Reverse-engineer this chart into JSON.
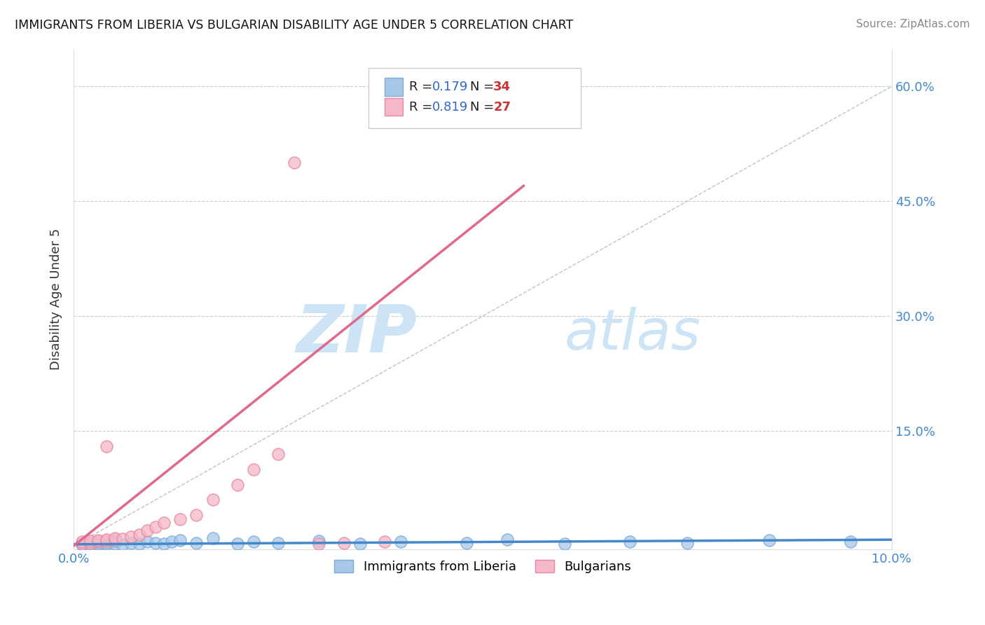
{
  "title": "IMMIGRANTS FROM LIBERIA VS BULGARIAN DISABILITY AGE UNDER 5 CORRELATION CHART",
  "source": "Source: ZipAtlas.com",
  "ylabel": "Disability Age Under 5",
  "ytick_vals": [
    0.0,
    0.15,
    0.3,
    0.45,
    0.6
  ],
  "ytick_labels": [
    "",
    "15.0%",
    "30.0%",
    "45.0%",
    "60.0%"
  ],
  "xlim": [
    0.0,
    0.1
  ],
  "ylim": [
    -0.005,
    0.65
  ],
  "background_color": "#ffffff",
  "grid_color": "#cccccc",
  "watermark_color": "#cce4f5",
  "legend_R1": "0.179",
  "legend_N1": "34",
  "legend_R2": "0.819",
  "legend_N2": "27",
  "color_liberia_fill": "#a8c8e8",
  "color_liberia_edge": "#7aabda",
  "color_bulgaria_fill": "#f5b8c8",
  "color_bulgaria_edge": "#e888a0",
  "color_liberia_line": "#4488cc",
  "color_bulgaria_line": "#e06888",
  "color_legend_blue": "#3366cc",
  "color_legend_red": "#cc3333",
  "color_text_dark": "#222222",
  "color_text_source": "#888888",
  "color_axis_label": "#4488cc",
  "liberia_x": [
    0.001,
    0.001,
    0.002,
    0.002,
    0.003,
    0.003,
    0.003,
    0.004,
    0.004,
    0.005,
    0.005,
    0.006,
    0.007,
    0.008,
    0.009,
    0.01,
    0.011,
    0.012,
    0.013,
    0.015,
    0.017,
    0.02,
    0.022,
    0.025,
    0.03,
    0.035,
    0.04,
    0.048,
    0.053,
    0.06,
    0.068,
    0.075,
    0.085,
    0.095
  ],
  "liberia_y": [
    0.002,
    0.003,
    0.001,
    0.004,
    0.002,
    0.003,
    0.005,
    0.002,
    0.004,
    0.003,
    0.006,
    0.002,
    0.004,
    0.003,
    0.005,
    0.004,
    0.003,
    0.005,
    0.007,
    0.004,
    0.01,
    0.003,
    0.005,
    0.004,
    0.006,
    0.003,
    0.005,
    0.004,
    0.008,
    0.003,
    0.005,
    0.004,
    0.007,
    0.005
  ],
  "bulgaria_x": [
    0.001,
    0.001,
    0.002,
    0.002,
    0.003,
    0.003,
    0.004,
    0.004,
    0.004,
    0.005,
    0.005,
    0.006,
    0.007,
    0.008,
    0.009,
    0.01,
    0.011,
    0.013,
    0.015,
    0.017,
    0.02,
    0.022,
    0.025,
    0.027,
    0.03,
    0.033,
    0.038
  ],
  "bulgaria_y": [
    0.003,
    0.005,
    0.004,
    0.006,
    0.005,
    0.007,
    0.006,
    0.008,
    0.13,
    0.008,
    0.01,
    0.009,
    0.012,
    0.015,
    0.02,
    0.025,
    0.03,
    0.035,
    0.04,
    0.06,
    0.08,
    0.1,
    0.12,
    0.5,
    0.003,
    0.004,
    0.005
  ],
  "lib_line_x": [
    0.0,
    0.1
  ],
  "lib_line_y": [
    0.002,
    0.008
  ],
  "bul_line_x": [
    0.0,
    0.055
  ],
  "bul_line_y": [
    0.0,
    0.47
  ]
}
